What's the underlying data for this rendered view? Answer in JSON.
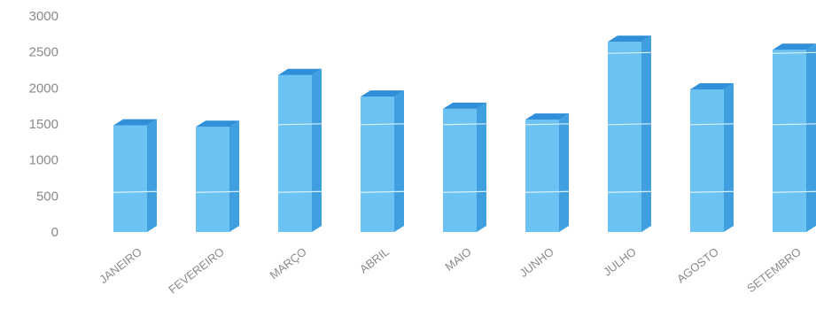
{
  "chart_data": {
    "type": "bar",
    "title": "",
    "xlabel": "",
    "ylabel": "",
    "categories": [
      "JANEIRO",
      "FEVEREIRO",
      "MARÇO",
      "ABRIL",
      "MAIO",
      "JUNHO",
      "JULHO",
      "AGOSTO",
      "SETEMBRO"
    ],
    "series": [
      {
        "values": [
          1480,
          1460,
          2180,
          1880,
          1710,
          1560,
          2640,
          1980,
          2530
        ]
      }
    ],
    "y_ticks": [
      "0",
      "500",
      "1000",
      "1500",
      "2000",
      "2500",
      "3000"
    ],
    "ylim": [
      0,
      3000
    ],
    "grid": false,
    "legend": "none",
    "bar_style": "3d",
    "colors": {
      "bar_front": "#6cc2f2",
      "bar_side": "#3f9fdf",
      "bar_top": "#2f8fd8",
      "bar_stripe": "#d8effc",
      "tick_text": "#8a8a8a"
    }
  }
}
